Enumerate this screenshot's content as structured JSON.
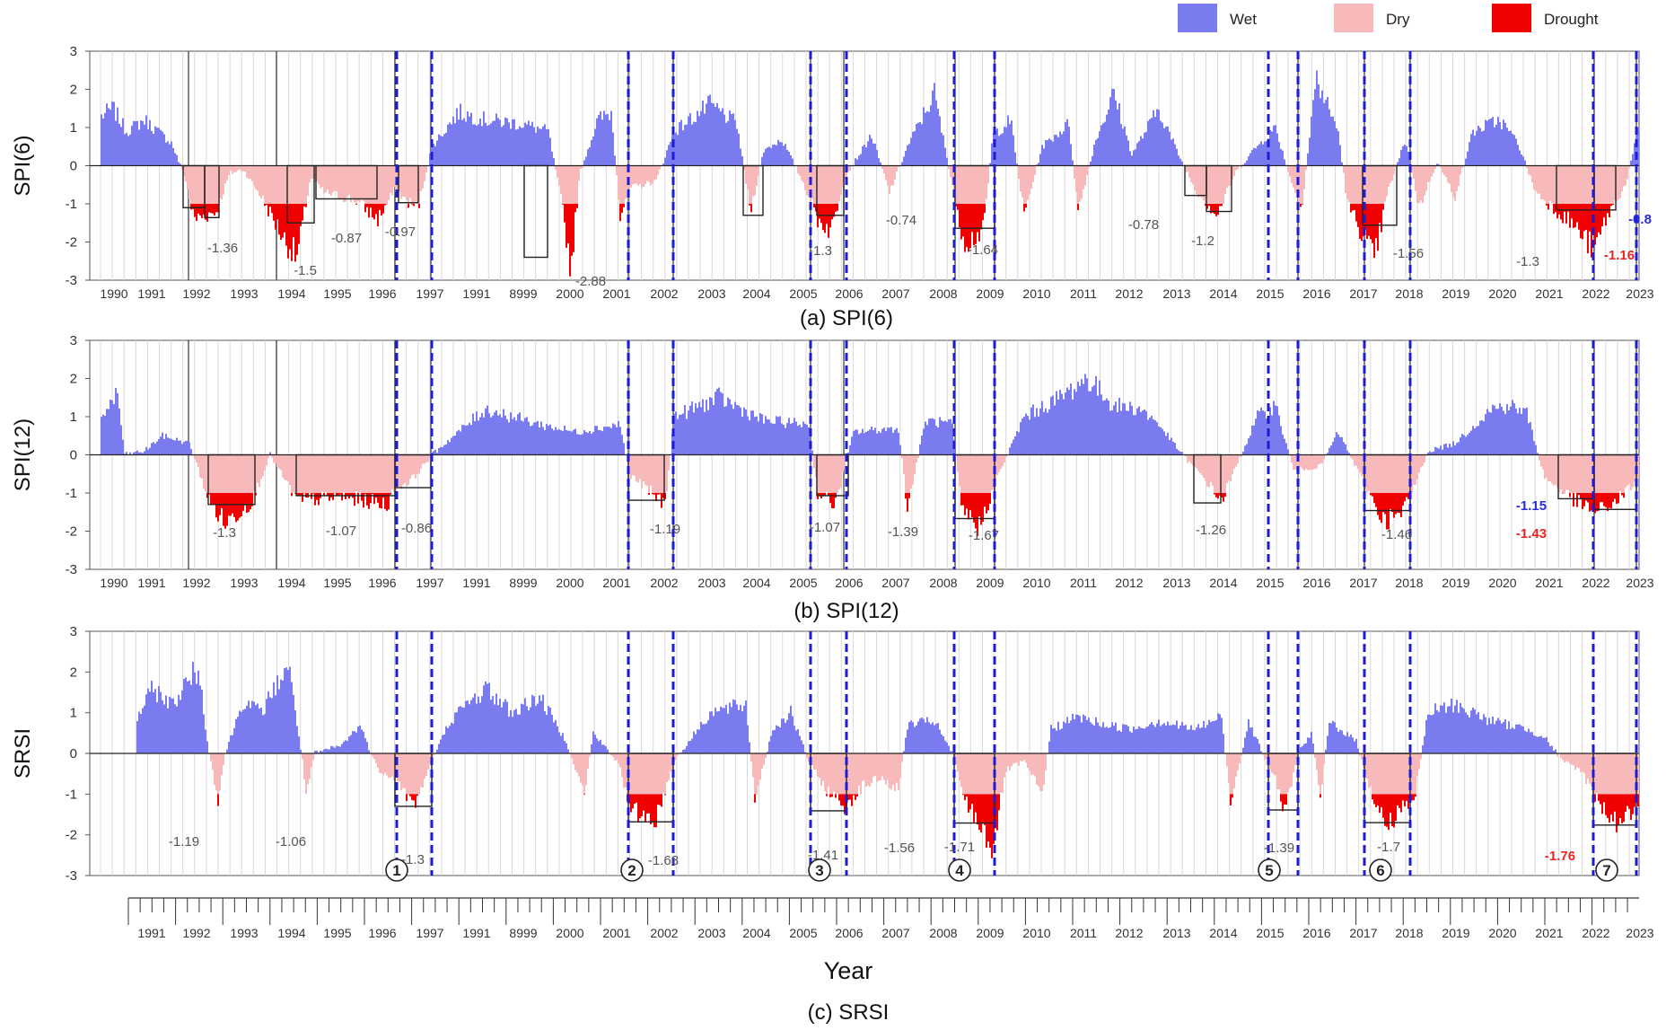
{
  "legend": [
    {
      "label": "Wet",
      "color": "#7b7bf0"
    },
    {
      "label": "Dry",
      "color": "#f7b9b9"
    },
    {
      "label": "Drought",
      "color": "#f00000"
    }
  ],
  "chart_data": [
    {
      "type": "area",
      "ylabel": "SPI(6)",
      "caption": "(a)  SPI(6)",
      "ylim": [
        -3,
        3
      ],
      "yticks": [
        3,
        2,
        1,
        0,
        -1,
        -2,
        -3
      ],
      "year_labels": [
        "1990",
        "1991",
        "1992",
        "1993",
        "1994",
        "1995",
        "1996",
        "1997",
        "1991",
        "8999",
        "2000",
        "2001",
        "2002",
        "2003",
        "2004",
        "2005",
        "2006",
        "2007",
        "2008",
        "2009",
        "2010",
        "2011",
        "2012",
        "2013",
        "2014",
        "2015",
        "2016",
        "2017",
        "2018",
        "2019",
        "2020",
        "2021",
        "2022",
        "2023"
      ],
      "annotations": [
        {
          "text": "-1.36",
          "color": "#555555"
        },
        {
          "text": "-1.5",
          "color": "#555555"
        },
        {
          "text": "-0.87",
          "color": "#555555"
        },
        {
          "text": "-0.97",
          "color": "#555555"
        },
        {
          "text": "-2.88",
          "color": "#555555"
        },
        {
          "text": "-1.3",
          "color": "#555555"
        },
        {
          "text": "-0.74",
          "color": "#555555"
        },
        {
          "text": "-1.64",
          "color": "#555555"
        },
        {
          "text": "-0.78",
          "color": "#555555"
        },
        {
          "text": "-1.2",
          "color": "#555555"
        },
        {
          "text": "-1.56",
          "color": "#555555"
        },
        {
          "text": "-1.3",
          "color": "#555555"
        },
        {
          "text": "-1.16",
          "color": "#ee2222"
        },
        {
          "text": "-0.8",
          "color": "#2b2bd9"
        }
      ]
    },
    {
      "type": "area",
      "ylabel": "SPI(12)",
      "caption": "(b)  SPI(12)",
      "ylim": [
        -3,
        3
      ],
      "yticks": [
        3,
        2,
        1,
        0,
        -1,
        -2,
        -3
      ],
      "year_labels": [
        "1990",
        "1991",
        "1992",
        "1993",
        "1994",
        "1995",
        "1996",
        "1997",
        "1991",
        "8999",
        "2000",
        "2001",
        "2002",
        "2003",
        "2004",
        "2005",
        "2006",
        "2007",
        "2008",
        "2009",
        "2010",
        "2011",
        "2012",
        "2013",
        "2014",
        "2015",
        "2016",
        "2017",
        "2018",
        "2019",
        "2020",
        "2021",
        "2022",
        "2023"
      ],
      "annotations": [
        {
          "text": "-1.3",
          "color": "#555555"
        },
        {
          "text": "-1.07",
          "color": "#555555"
        },
        {
          "text": "-0.86",
          "color": "#555555"
        },
        {
          "text": "-1.19",
          "color": "#555555"
        },
        {
          "text": "-1.07",
          "color": "#555555"
        },
        {
          "text": "-1.39",
          "color": "#555555"
        },
        {
          "text": "-1.67",
          "color": "#555555"
        },
        {
          "text": "-1.26",
          "color": "#555555"
        },
        {
          "text": "-1.46",
          "color": "#555555"
        },
        {
          "text": "-1.15",
          "color": "#2b2bd9"
        },
        {
          "text": "-1.43",
          "color": "#ee2222"
        }
      ]
    },
    {
      "type": "area",
      "ylabel": "SRSI",
      "caption": "(c)  SRSI",
      "xlabel": "Year",
      "ylim": [
        -3,
        3
      ],
      "yticks": [
        3,
        2,
        1,
        0,
        -1,
        -2,
        -3
      ],
      "year_labels": [
        "1991",
        "1992",
        "1993",
        "1994",
        "1995",
        "1996",
        "1997",
        "1991",
        "8999",
        "2000",
        "2001",
        "2002",
        "2003",
        "2004",
        "2005",
        "2006",
        "2007",
        "2008",
        "2009",
        "2010",
        "2011",
        "2012",
        "2013",
        "2014",
        "2015",
        "2016",
        "2017",
        "2018",
        "2019",
        "2020",
        "2021",
        "2022",
        "2023"
      ],
      "annotations": [
        {
          "text": "-1.19",
          "color": "#555555"
        },
        {
          "text": "-1.06",
          "color": "#555555"
        },
        {
          "text": "-1.3",
          "color": "#555555"
        },
        {
          "text": "-1.68",
          "color": "#555555"
        },
        {
          "text": "-1.41",
          "color": "#555555"
        },
        {
          "text": "-1.56",
          "color": "#555555"
        },
        {
          "text": "-1.71",
          "color": "#555555"
        },
        {
          "text": "-1.39",
          "color": "#555555"
        },
        {
          "text": "-1.7",
          "color": "#555555"
        },
        {
          "text": "-1.76",
          "color": "#ee2222"
        }
      ],
      "event_markers": [
        "1",
        "2",
        "3",
        "4",
        "5",
        "6",
        "7"
      ]
    }
  ]
}
